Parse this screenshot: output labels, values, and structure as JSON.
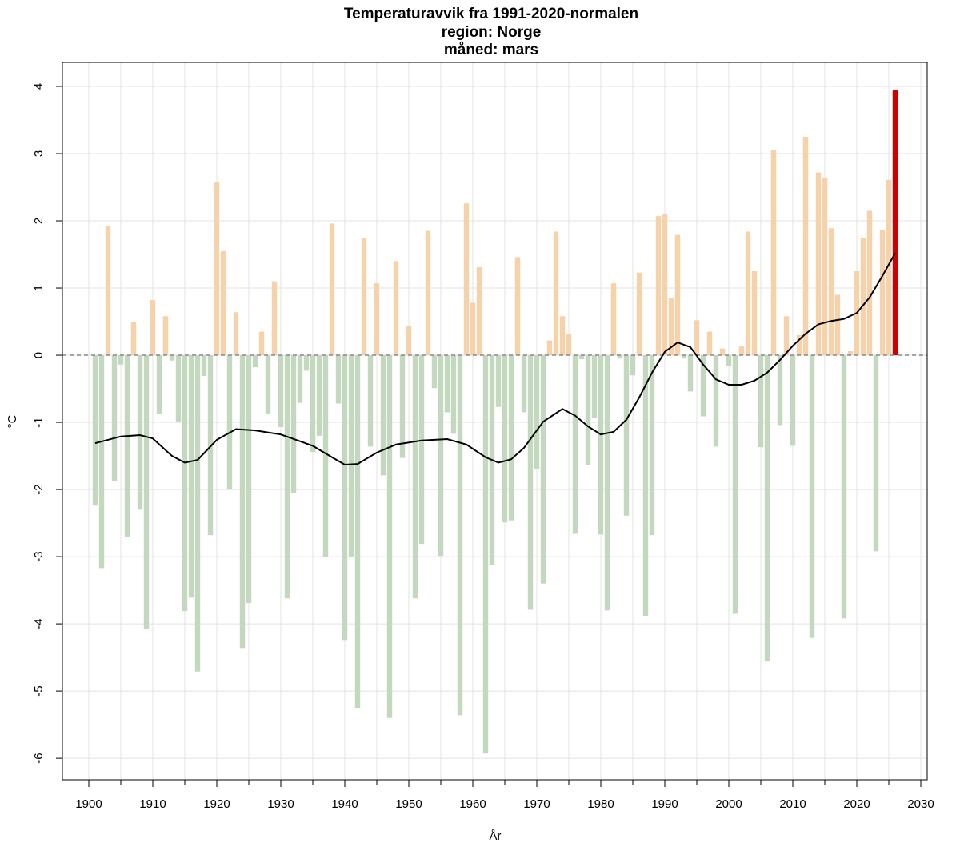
{
  "chart_data": {
    "type": "bar",
    "title": "Temperaturavvik fra 1991-2020-normalen",
    "subtitle": [
      "region: Norge",
      "måned: mars"
    ],
    "xlabel": "År",
    "ylabel": "°C",
    "x": [
      1901,
      1902,
      1903,
      1904,
      1905,
      1906,
      1907,
      1908,
      1909,
      1910,
      1911,
      1912,
      1913,
      1914,
      1915,
      1916,
      1917,
      1918,
      1919,
      1920,
      1921,
      1922,
      1923,
      1924,
      1925,
      1926,
      1927,
      1928,
      1929,
      1930,
      1931,
      1932,
      1933,
      1934,
      1935,
      1936,
      1937,
      1938,
      1939,
      1940,
      1941,
      1942,
      1943,
      1944,
      1945,
      1946,
      1947,
      1948,
      1949,
      1950,
      1951,
      1952,
      1953,
      1954,
      1955,
      1956,
      1957,
      1958,
      1959,
      1960,
      1961,
      1962,
      1963,
      1964,
      1965,
      1966,
      1967,
      1968,
      1969,
      1970,
      1971,
      1972,
      1973,
      1974,
      1975,
      1976,
      1977,
      1978,
      1979,
      1980,
      1981,
      1982,
      1983,
      1984,
      1985,
      1986,
      1987,
      1988,
      1989,
      1990,
      1991,
      1992,
      1993,
      1994,
      1995,
      1996,
      1997,
      1998,
      1999,
      2000,
      2001,
      2002,
      2003,
      2004,
      2005,
      2006,
      2007,
      2008,
      2009,
      2010,
      2011,
      2012,
      2013,
      2014,
      2015,
      2016,
      2017,
      2018,
      2019,
      2020,
      2021,
      2022,
      2023,
      2024,
      2025,
      2026
    ],
    "values": [
      -2.24,
      -3.17,
      1.92,
      -1.87,
      -0.14,
      -2.71,
      0.49,
      -2.3,
      -4.07,
      0.82,
      -0.87,
      0.58,
      -0.08,
      -1.0,
      -3.81,
      -3.61,
      -4.71,
      -0.31,
      -2.68,
      2.58,
      1.55,
      -2.0,
      0.64,
      -4.36,
      -3.69,
      -0.18,
      0.35,
      -0.87,
      1.1,
      -1.07,
      -3.62,
      -2.05,
      -0.71,
      -0.23,
      -1.44,
      -1.2,
      -3.01,
      1.96,
      -0.72,
      -4.24,
      -3.0,
      -5.25,
      1.75,
      -1.36,
      1.07,
      -1.79,
      -5.4,
      1.4,
      -1.53,
      0.43,
      -3.62,
      -2.81,
      1.85,
      -0.49,
      -2.99,
      -0.85,
      -1.17,
      -5.36,
      2.26,
      0.78,
      1.31,
      -5.93,
      -3.12,
      -0.77,
      -2.49,
      -2.46,
      1.46,
      -0.85,
      -3.79,
      -1.69,
      -3.4,
      0.22,
      1.84,
      0.58,
      0.32,
      -2.66,
      -0.06,
      -1.64,
      -0.93,
      -2.67,
      -3.8,
      1.07,
      -0.05,
      -2.39,
      -0.3,
      1.23,
      -3.88,
      -2.68,
      2.07,
      2.1,
      0.85,
      1.79,
      -0.05,
      -0.54,
      0.52,
      -0.91,
      0.35,
      -1.36,
      0.1,
      -0.16,
      -3.85,
      0.13,
      1.84,
      1.25,
      -1.37,
      -4.56,
      3.06,
      -1.04,
      0.58,
      -1.35,
      0.3,
      3.25,
      -4.21,
      2.72,
      2.64,
      1.89,
      0.9,
      -3.92,
      0.06,
      1.25,
      1.75,
      2.15,
      -2.92,
      1.86,
      2.61,
      3.94
    ],
    "color_positive": "#f6d2aa",
    "color_negative": "#c3d8bf",
    "color_highlight": "#cc0000",
    "trend": {
      "color": "#000000",
      "x": [
        1901,
        1905,
        1908,
        1910,
        1913,
        1915,
        1917,
        1920,
        1923,
        1926,
        1930,
        1935,
        1938,
        1940,
        1942,
        1945,
        1948,
        1952,
        1956,
        1959,
        1962,
        1964,
        1966,
        1968,
        1971,
        1974,
        1976,
        1978,
        1980,
        1982,
        1984,
        1986,
        1988,
        1990,
        1992,
        1994,
        1996,
        1998,
        2000,
        2002,
        2004,
        2006,
        2008,
        2010,
        2012,
        2014,
        2016,
        2018,
        2020,
        2022,
        2024,
        2026
      ],
      "values": [
        -1.31,
        -1.21,
        -1.19,
        -1.24,
        -1.5,
        -1.6,
        -1.56,
        -1.26,
        -1.1,
        -1.12,
        -1.18,
        -1.35,
        -1.52,
        -1.63,
        -1.62,
        -1.45,
        -1.33,
        -1.27,
        -1.25,
        -1.33,
        -1.52,
        -1.6,
        -1.55,
        -1.38,
        -0.99,
        -0.8,
        -0.9,
        -1.06,
        -1.18,
        -1.14,
        -0.96,
        -0.63,
        -0.26,
        0.05,
        0.19,
        0.12,
        -0.14,
        -0.36,
        -0.44,
        -0.44,
        -0.38,
        -0.26,
        -0.07,
        0.14,
        0.32,
        0.46,
        0.51,
        0.54,
        0.63,
        0.86,
        1.18,
        1.52
      ]
    },
    "xlim": [
      1895.875,
      2031
    ],
    "ylim": [
      -6.32,
      4.357
    ],
    "xticks": [
      1900,
      1910,
      1920,
      1930,
      1940,
      1950,
      1960,
      1970,
      1980,
      1990,
      2000,
      2010,
      2020,
      2030
    ],
    "xminorticks": [
      1905,
      1915,
      1925,
      1935,
      1945,
      1955,
      1965,
      1975,
      1985,
      1995,
      2005,
      2015,
      2025
    ],
    "yticks": [
      -6,
      -5,
      -4,
      -3,
      -2,
      -1,
      0,
      1,
      2,
      3,
      4
    ],
    "grid": true,
    "zero_line": true
  }
}
